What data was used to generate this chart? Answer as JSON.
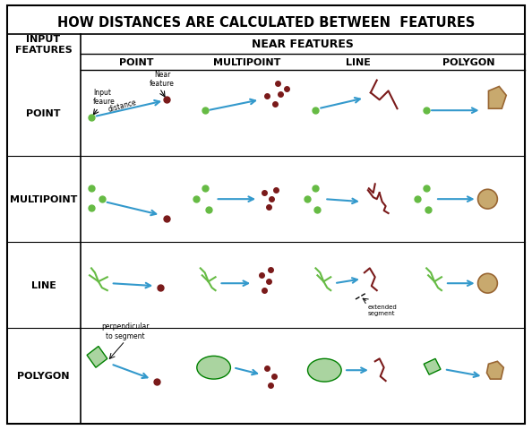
{
  "title": "HOW DISTANCES ARE CALCULATED BETWEEN  FEATURES",
  "col_header": "NEAR FEATURES",
  "row_header": "INPUT\nFEATURES",
  "col_labels": [
    "POINT",
    "MULTIPOINT",
    "LINE",
    "POLYGON"
  ],
  "row_labels": [
    "POINT",
    "MULTIPOINT",
    "LINE",
    "POLYGON"
  ],
  "bg_color": "#ffffff",
  "border_color": "#000000",
  "green_point": "#66bb44",
  "dark_red": "#7a1a1a",
  "tan_fill": "#c8a96e",
  "light_green_fill": "#aad4a0",
  "blue_arrow": "#3399cc",
  "grid_color": "#aaaaaa"
}
